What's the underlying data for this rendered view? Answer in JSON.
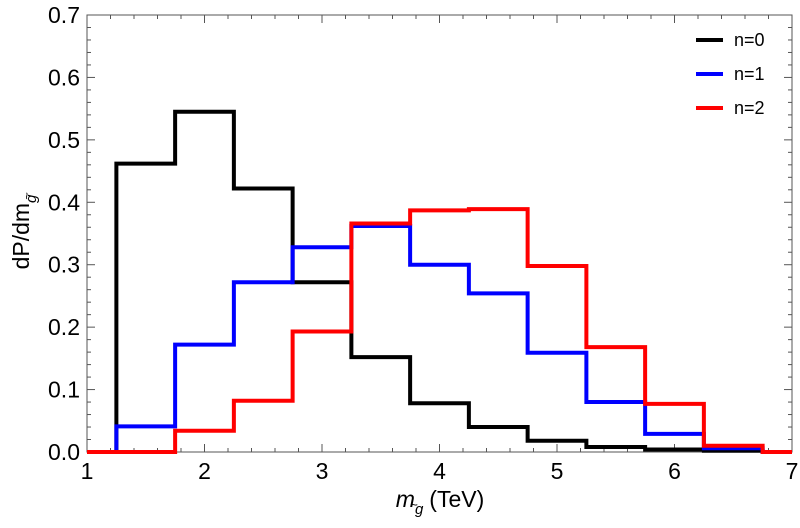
{
  "chart_data": {
    "type": "line",
    "style": "histogram-step",
    "title": "",
    "xlabel": {
      "var": "m",
      "sub": "g",
      "tilde": "~",
      "unit": "(TeV)"
    },
    "ylabel": {
      "base": "dP/dm",
      "sub": "g",
      "tilde": "~"
    },
    "xlim": [
      1,
      7
    ],
    "ylim": [
      0,
      0.7
    ],
    "xticks": [
      1,
      2,
      3,
      4,
      5,
      6,
      7
    ],
    "yticks": [
      0.0,
      0.1,
      0.2,
      0.3,
      0.4,
      0.5,
      0.6,
      0.7
    ],
    "ytick_labels": [
      "0.0",
      "0.1",
      "0.2",
      "0.3",
      "0.4",
      "0.5",
      "0.6",
      "0.7"
    ],
    "bin_edges": [
      1.0,
      1.25,
      1.75,
      2.25,
      2.75,
      3.25,
      3.75,
      4.25,
      4.75,
      5.25,
      5.75,
      6.25,
      6.75,
      7.0
    ],
    "legend_position": "top-right",
    "series": [
      {
        "name": "n=0",
        "color": "#000000",
        "values": [
          0.0,
          0.462,
          0.545,
          0.422,
          0.272,
          0.152,
          0.078,
          0.04,
          0.018,
          0.008,
          0.004,
          0.002,
          0.0
        ]
      },
      {
        "name": "n=1",
        "color": "#0000ff",
        "values": [
          0.0,
          0.041,
          0.172,
          0.272,
          0.328,
          0.362,
          0.3,
          0.254,
          0.159,
          0.08,
          0.029,
          0.006,
          0.0
        ]
      },
      {
        "name": "n=2",
        "color": "#ff0000",
        "values": [
          0.0,
          0.0,
          0.034,
          0.082,
          0.193,
          0.366,
          0.387,
          0.389,
          0.298,
          0.168,
          0.077,
          0.01,
          0.0
        ]
      }
    ]
  }
}
